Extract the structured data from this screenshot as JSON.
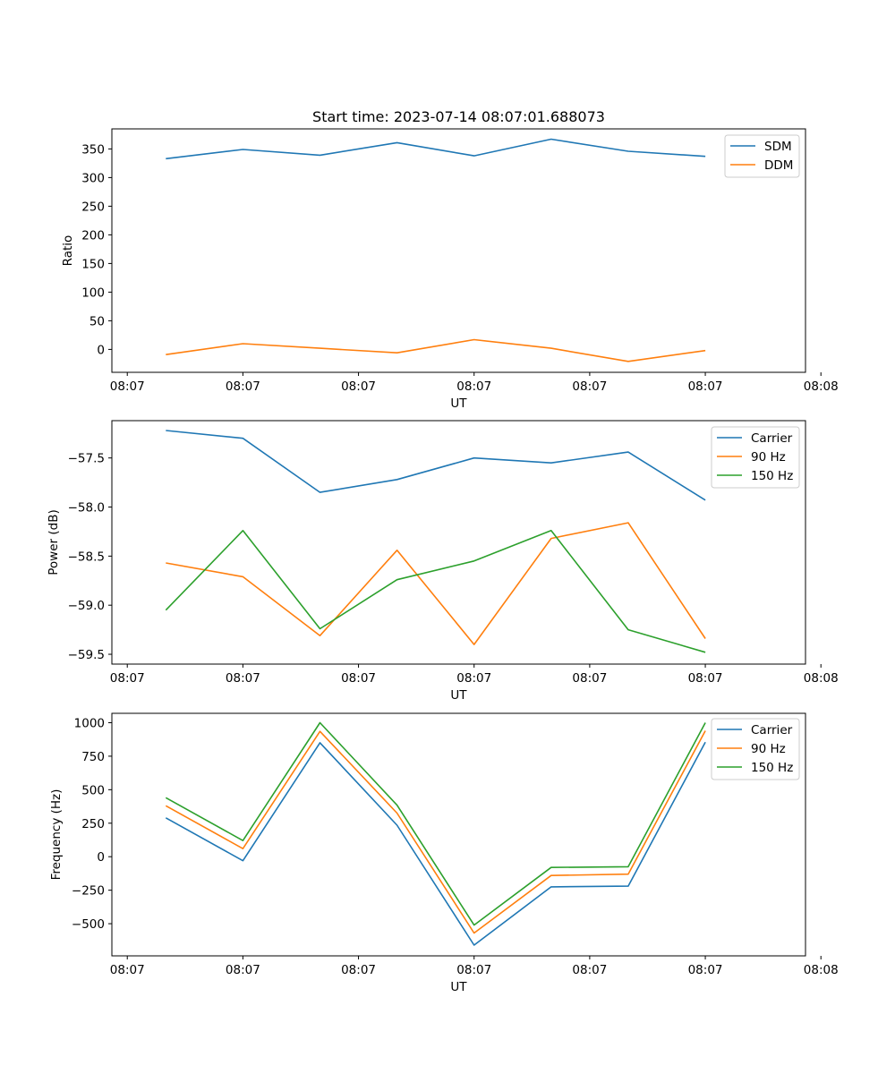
{
  "figure_title": "Start time: 2023-07-14 08:07:01.688073",
  "colors": {
    "blue": "#1f77b4",
    "orange": "#ff7f0e",
    "green": "#2ca02c"
  },
  "chart_data": [
    {
      "type": "line",
      "title": "Start time: 2023-07-14 08:07:01.688073",
      "xlabel": "UT",
      "ylabel": "Ratio",
      "x": [
        1,
        2,
        3,
        4,
        5,
        6,
        7,
        8
      ],
      "xlim": [
        0.3,
        9.3
      ],
      "x_ticks": [
        0.5,
        2,
        3.5,
        5,
        6.5,
        8,
        9.5
      ],
      "x_tick_labels": [
        "08:07",
        "08:07",
        "08:07",
        "08:07",
        "08:07",
        "08:07",
        "08:08"
      ],
      "ylim": [
        -40,
        385
      ],
      "y_ticks": [
        0,
        50,
        100,
        150,
        200,
        250,
        300,
        350
      ],
      "y_tick_labels": [
        "0",
        "50",
        "100",
        "150",
        "200",
        "250",
        "300",
        "350"
      ],
      "legend": "upper right",
      "series": [
        {
          "name": "SDM",
          "color": "#1f77b4",
          "values": [
            333,
            349,
            339,
            361,
            338,
            367,
            346,
            337
          ]
        },
        {
          "name": "DDM",
          "color": "#ff7f0e",
          "values": [
            -9,
            10,
            2,
            -6,
            17,
            2,
            -21,
            -2
          ]
        }
      ]
    },
    {
      "type": "line",
      "title": "",
      "xlabel": "UT",
      "ylabel": "Power (dB)",
      "x": [
        1,
        2,
        3,
        4,
        5,
        6,
        7,
        8
      ],
      "xlim": [
        0.3,
        9.3
      ],
      "x_ticks": [
        0.5,
        2,
        3.5,
        5,
        6.5,
        8,
        9.5
      ],
      "x_tick_labels": [
        "08:07",
        "08:07",
        "08:07",
        "08:07",
        "08:07",
        "08:07",
        "08:08"
      ],
      "ylim": [
        -59.6,
        -57.12
      ],
      "y_ticks": [
        -59.5,
        -59.0,
        -58.5,
        -58.0,
        -57.5
      ],
      "y_tick_labels": [
        "−59.5",
        "−59.0",
        "−58.5",
        "−58.0",
        "−57.5"
      ],
      "legend": "upper right",
      "series": [
        {
          "name": "Carrier",
          "color": "#1f77b4",
          "values": [
            -57.22,
            -57.3,
            -57.85,
            -57.72,
            -57.5,
            -57.55,
            -57.44,
            -57.93
          ]
        },
        {
          "name": "90 Hz",
          "color": "#ff7f0e",
          "values": [
            -58.57,
            -58.71,
            -59.31,
            -58.44,
            -59.4,
            -58.32,
            -58.16,
            -59.34
          ]
        },
        {
          "name": "150 Hz",
          "color": "#2ca02c",
          "values": [
            -59.05,
            -58.24,
            -59.24,
            -58.74,
            -58.55,
            -58.24,
            -59.25,
            -59.48
          ]
        }
      ]
    },
    {
      "type": "line",
      "title": "",
      "xlabel": "UT",
      "ylabel": "Frequency (Hz)",
      "x": [
        1,
        2,
        3,
        4,
        5,
        6,
        7,
        8
      ],
      "xlim": [
        0.3,
        9.3
      ],
      "x_ticks": [
        0.5,
        2,
        3.5,
        5,
        6.5,
        8,
        9.5
      ],
      "x_tick_labels": [
        "08:07",
        "08:07",
        "08:07",
        "08:07",
        "08:07",
        "08:07",
        "08:08"
      ],
      "ylim": [
        -740,
        1070
      ],
      "y_ticks": [
        -500,
        -250,
        0,
        250,
        500,
        750,
        1000
      ],
      "y_tick_labels": [
        "−500",
        "−250",
        "0",
        "250",
        "500",
        "750",
        "1000"
      ],
      "legend": "upper right",
      "series": [
        {
          "name": "Carrier",
          "color": "#1f77b4",
          "values": [
            290,
            -30,
            850,
            235,
            -660,
            -225,
            -220,
            855
          ]
        },
        {
          "name": "90 Hz",
          "color": "#ff7f0e",
          "values": [
            380,
            60,
            935,
            325,
            -570,
            -140,
            -130,
            940
          ]
        },
        {
          "name": "150 Hz",
          "color": "#2ca02c",
          "values": [
            440,
            120,
            1000,
            385,
            -510,
            -80,
            -75,
            1000
          ]
        }
      ]
    }
  ]
}
